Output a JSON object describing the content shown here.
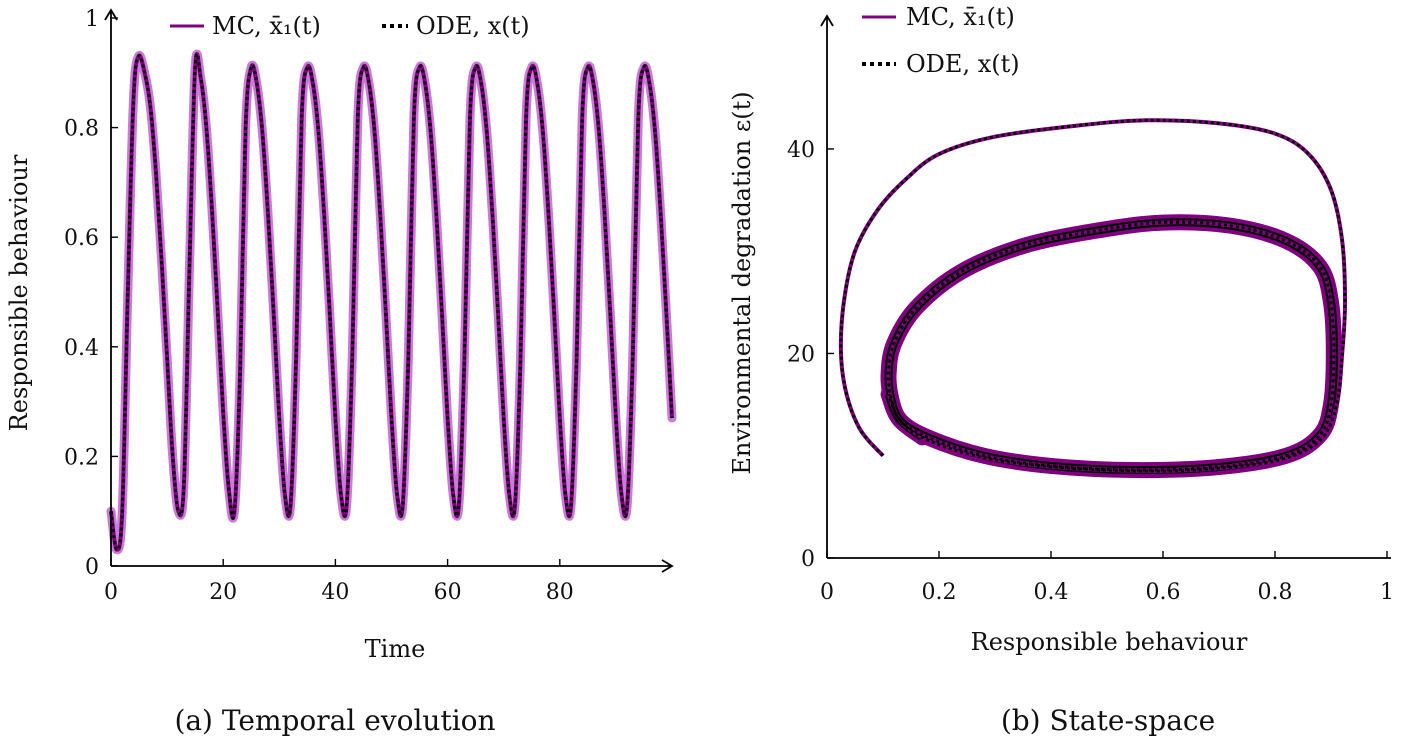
{
  "colors": {
    "mc": "#800080",
    "mc_band": "#c77dd6",
    "ode": "#000000",
    "axis": "#000000"
  },
  "chart_data": [
    {
      "type": "line",
      "title": "",
      "caption": "(a) Temporal evolution",
      "xlabel": "Time",
      "ylabel": "Responsible behaviour",
      "xlim": [
        0,
        100
      ],
      "ylim": [
        0,
        1
      ],
      "xticks": [
        0,
        20,
        40,
        60,
        80
      ],
      "yticks": [
        0,
        0.2,
        0.4,
        0.6,
        0.8,
        1
      ],
      "xtick_labels": [
        "0",
        "20",
        "40",
        "60",
        "80"
      ],
      "ytick_labels": [
        "0",
        "0.2",
        "0.4",
        "0.6",
        "0.8",
        "1"
      ],
      "grid": false,
      "legend_position": "top",
      "series": [
        {
          "name": "MC, x̄₁(t)",
          "style": "solid",
          "x": [
            0,
            1,
            2,
            3,
            4,
            4.9,
            6,
            7,
            8,
            9,
            10,
            11,
            12,
            13,
            14,
            15,
            16,
            17,
            18,
            19,
            20,
            21,
            22,
            23,
            24,
            25,
            26,
            27,
            28,
            29,
            30,
            31,
            32,
            33,
            34,
            35,
            36,
            37,
            38,
            39,
            40,
            41,
            42,
            43,
            44,
            45,
            46,
            47,
            48,
            49,
            50,
            51,
            52,
            53,
            54,
            55,
            56,
            57,
            58,
            59,
            60,
            61,
            62,
            63,
            64,
            65,
            66,
            67,
            68,
            69,
            70,
            71,
            72,
            73,
            74,
            75,
            76,
            77,
            78,
            79,
            80,
            81,
            82,
            83,
            84,
            85,
            86,
            87,
            88,
            89,
            90,
            91,
            92,
            93,
            94,
            95,
            96,
            97,
            98,
            99,
            100
          ],
          "y": [
            0.1,
            0.03,
            0.1,
            0.5,
            0.85,
            0.93,
            0.9,
            0.84,
            0.72,
            0.56,
            0.38,
            0.2,
            0.1,
            0.15,
            0.55,
            0.91,
            0.89,
            0.8,
            0.65,
            0.47,
            0.28,
            0.14,
            0.1,
            0.35,
            0.8,
            0.91,
            0.88,
            0.79,
            0.64,
            0.46,
            0.27,
            0.13,
            0.11,
            0.38,
            0.82,
            0.91,
            0.88,
            0.79,
            0.64,
            0.46,
            0.27,
            0.13,
            0.11,
            0.38,
            0.82,
            0.91,
            0.88,
            0.79,
            0.64,
            0.46,
            0.27,
            0.13,
            0.11,
            0.38,
            0.82,
            0.91,
            0.88,
            0.79,
            0.64,
            0.46,
            0.27,
            0.13,
            0.11,
            0.38,
            0.82,
            0.91,
            0.88,
            0.79,
            0.64,
            0.46,
            0.27,
            0.13,
            0.11,
            0.38,
            0.82,
            0.91,
            0.88,
            0.79,
            0.64,
            0.46,
            0.27,
            0.13,
            0.11,
            0.38,
            0.82,
            0.91,
            0.88,
            0.79,
            0.64,
            0.46,
            0.27,
            0.13,
            0.11,
            0.38,
            0.82,
            0.91,
            0.88,
            0.79,
            0.64,
            0.46,
            0.27
          ]
        },
        {
          "name": "ODE, x(t)",
          "style": "dotted",
          "x": [
            0,
            1,
            2,
            3,
            4,
            4.9,
            6,
            7,
            8,
            9,
            10,
            11,
            12,
            13,
            14,
            15,
            16,
            17,
            18,
            19,
            20,
            21,
            22,
            23,
            24,
            25,
            26,
            27,
            28,
            29,
            30,
            31,
            32,
            33,
            34,
            35,
            36,
            37,
            38,
            39,
            40,
            41,
            42,
            43,
            44,
            45,
            46,
            47,
            48,
            49,
            50,
            51,
            52,
            53,
            54,
            55,
            56,
            57,
            58,
            59,
            60,
            61,
            62,
            63,
            64,
            65,
            66,
            67,
            68,
            69,
            70,
            71,
            72,
            73,
            74,
            75,
            76,
            77,
            78,
            79,
            80,
            81,
            82,
            83,
            84,
            85,
            86,
            87,
            88,
            89,
            90,
            91,
            92,
            93,
            94,
            95,
            96,
            97,
            98,
            99,
            100
          ],
          "y": [
            0.1,
            0.03,
            0.1,
            0.5,
            0.85,
            0.93,
            0.9,
            0.84,
            0.72,
            0.56,
            0.38,
            0.2,
            0.1,
            0.15,
            0.55,
            0.91,
            0.89,
            0.8,
            0.65,
            0.47,
            0.28,
            0.14,
            0.1,
            0.35,
            0.8,
            0.91,
            0.88,
            0.79,
            0.64,
            0.46,
            0.27,
            0.13,
            0.11,
            0.38,
            0.82,
            0.91,
            0.88,
            0.79,
            0.64,
            0.46,
            0.27,
            0.13,
            0.11,
            0.38,
            0.82,
            0.91,
            0.88,
            0.79,
            0.64,
            0.46,
            0.27,
            0.13,
            0.11,
            0.38,
            0.82,
            0.91,
            0.88,
            0.79,
            0.64,
            0.46,
            0.27,
            0.13,
            0.11,
            0.38,
            0.82,
            0.91,
            0.88,
            0.79,
            0.64,
            0.46,
            0.27,
            0.13,
            0.11,
            0.38,
            0.82,
            0.91,
            0.88,
            0.79,
            0.64,
            0.46,
            0.27,
            0.13,
            0.11,
            0.38,
            0.82,
            0.91,
            0.88,
            0.79,
            0.64,
            0.46,
            0.27,
            0.13,
            0.11,
            0.38,
            0.82,
            0.91,
            0.88,
            0.79,
            0.64,
            0.46,
            0.27
          ]
        }
      ]
    },
    {
      "type": "line",
      "title": "",
      "caption": "(b) State-space",
      "xlabel": "Responsible behaviour",
      "ylabel": "Environmental degradation ε(t)",
      "xlim": [
        0,
        1
      ],
      "ylim": [
        0,
        53
      ],
      "xticks": [
        0,
        0.2,
        0.4,
        0.6,
        0.8,
        1
      ],
      "yticks": [
        0,
        20,
        40
      ],
      "xtick_labels": [
        "0",
        "0.2",
        "0.4",
        "0.6",
        "0.8",
        "1"
      ],
      "ytick_labels": [
        "0",
        "20",
        "40"
      ],
      "grid": false,
      "legend_position": "top-left",
      "series": [
        {
          "name": "MC, x̄₁(t)",
          "style": "solid",
          "x": [
            0.1,
            0.06,
            0.035,
            0.025,
            0.03,
            0.05,
            0.09,
            0.14,
            0.2,
            0.3,
            0.45,
            0.57,
            0.7,
            0.8,
            0.86,
            0.9,
            0.92,
            0.925,
            0.92,
            0.91,
            0.88,
            0.8,
            0.65,
            0.5,
            0.35,
            0.25,
            0.17,
            0.13,
            0.115,
            0.11,
            0.12,
            0.16,
            0.24,
            0.35,
            0.48,
            0.6,
            0.72,
            0.82,
            0.88,
            0.9,
            0.905,
            0.9,
            0.88,
            0.82,
            0.7,
            0.55,
            0.4,
            0.28,
            0.18,
            0.13,
            0.11
          ],
          "y": [
            10,
            12.5,
            16,
            20,
            25,
            30,
            34,
            37,
            39.5,
            41.2,
            42.3,
            42.8,
            42.5,
            41.5,
            39.5,
            36,
            31,
            25,
            20,
            15,
            11.5,
            9.5,
            8.6,
            8.6,
            9.2,
            10.2,
            11.8,
            13.5,
            15.5,
            18,
            21,
            24.5,
            28,
            30.5,
            32,
            32.8,
            32.5,
            31,
            28.5,
            25,
            20,
            15,
            12,
            10,
            8.9,
            8.6,
            9,
            10,
            11.8,
            13.5,
            16
          ]
        },
        {
          "name": "ODE, x(t)",
          "style": "dotted",
          "x": [
            0.1,
            0.06,
            0.035,
            0.025,
            0.03,
            0.05,
            0.09,
            0.14,
            0.2,
            0.3,
            0.45,
            0.57,
            0.7,
            0.8,
            0.86,
            0.9,
            0.92,
            0.925,
            0.92,
            0.91,
            0.88,
            0.8,
            0.65,
            0.5,
            0.35,
            0.25,
            0.17,
            0.13,
            0.115,
            0.11,
            0.12,
            0.16,
            0.24,
            0.35,
            0.48,
            0.6,
            0.72,
            0.82,
            0.88,
            0.9,
            0.905,
            0.9,
            0.88,
            0.82,
            0.7,
            0.55,
            0.4,
            0.28,
            0.18,
            0.13,
            0.11
          ],
          "y": [
            10,
            12.5,
            16,
            20,
            25,
            30,
            34,
            37,
            39.5,
            41.2,
            42.3,
            42.8,
            42.5,
            41.5,
            39.5,
            36,
            31,
            25,
            20,
            15,
            11.5,
            9.5,
            8.6,
            8.6,
            9.2,
            10.2,
            11.8,
            13.5,
            15.5,
            18,
            21,
            24.5,
            28,
            30.5,
            32,
            32.8,
            32.5,
            31,
            28.5,
            25,
            20,
            15,
            12,
            10,
            8.9,
            8.6,
            9,
            10,
            11.8,
            13.5,
            16
          ]
        }
      ]
    }
  ]
}
